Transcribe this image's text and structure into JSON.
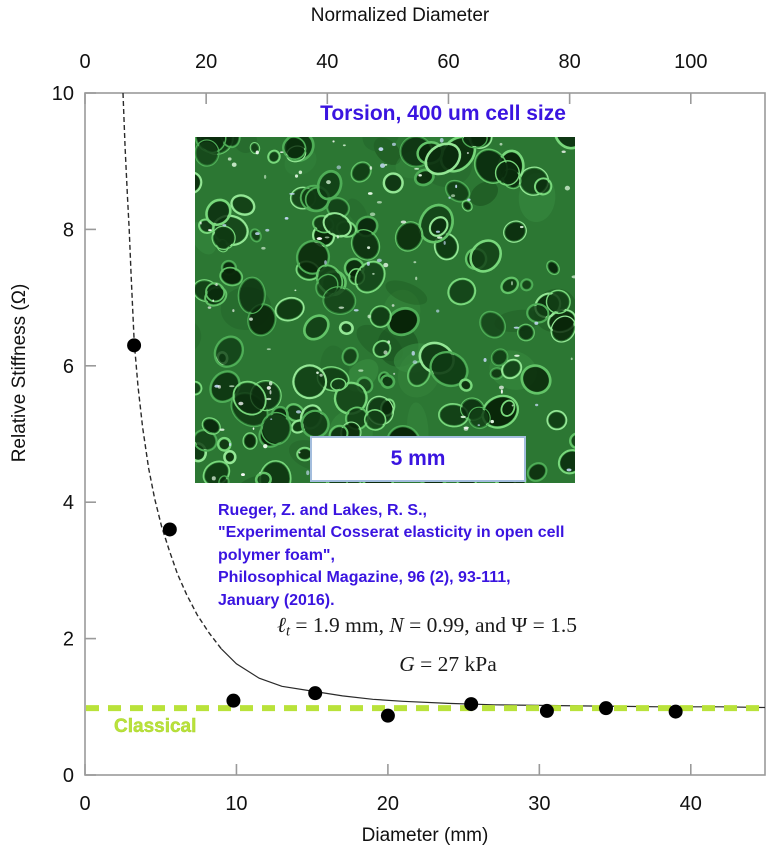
{
  "colors": {
    "accent_blue": "#3a14e0",
    "classical_green": "#b9e23a",
    "axis_gray": "#9a9a9a",
    "point_black": "#000000",
    "curve_dark": "#2a2a2a",
    "foam_green_base": "#2c7733"
  },
  "chart_data": {
    "type": "scatter",
    "title": "Torsion, 400 um cell size",
    "top_axis": {
      "label": "Normalized Diameter",
      "ticks": [
        0,
        20,
        40,
        60,
        80,
        100
      ],
      "range": [
        0,
        112.25
      ]
    },
    "bottom_axis": {
      "label": "Diameter (mm)",
      "ticks": [
        0,
        10,
        20,
        30,
        40
      ],
      "range": [
        0,
        44.9
      ]
    },
    "left_axis": {
      "label": "Relative Stiffness (Ω)",
      "ticks": [
        0,
        2,
        4,
        6,
        8,
        10
      ],
      "range": [
        0,
        10
      ]
    },
    "grid": false,
    "legend": "none",
    "points": [
      [
        3.24,
        6.3
      ],
      [
        5.6,
        3.6
      ],
      [
        9.8,
        1.09
      ],
      [
        15.2,
        1.2
      ],
      [
        20.0,
        0.87
      ],
      [
        25.5,
        1.04
      ],
      [
        30.5,
        0.94
      ],
      [
        34.4,
        0.98
      ],
      [
        39.0,
        0.93
      ]
    ],
    "fit_curve": [
      [
        2.51,
        10.0
      ],
      [
        2.65,
        9.2
      ],
      [
        2.8,
        8.5
      ],
      [
        2.92,
        8.0
      ],
      [
        3.05,
        7.3
      ],
      [
        3.25,
        6.35
      ],
      [
        3.5,
        5.7
      ],
      [
        3.8,
        5.1
      ],
      [
        4.2,
        4.5
      ],
      [
        4.6,
        4.05
      ],
      [
        5.05,
        3.65
      ],
      [
        5.55,
        3.3
      ],
      [
        6.1,
        2.95
      ],
      [
        6.7,
        2.65
      ],
      [
        7.4,
        2.35
      ],
      [
        8.2,
        2.08
      ],
      [
        9.0,
        1.85
      ],
      [
        10.0,
        1.63
      ],
      [
        11.5,
        1.42
      ],
      [
        13.0,
        1.3
      ],
      [
        15.0,
        1.23
      ],
      [
        17.0,
        1.16
      ],
      [
        19.0,
        1.11
      ],
      [
        21.0,
        1.08
      ],
      [
        24.0,
        1.05
      ],
      [
        27.0,
        1.03
      ],
      [
        30.0,
        1.02
      ],
      [
        34.0,
        1.01
      ],
      [
        38.0,
        1.0
      ],
      [
        42.0,
        1.0
      ],
      [
        44.9,
        0.99
      ]
    ],
    "classical_line": {
      "label": "Classical",
      "value": 0.98
    }
  },
  "annotations": {
    "citation_lines": [
      "Rueger, Z. and Lakes, R. S.,",
      "\"Experimental Cosserat elasticity in open cell",
      "polymer foam\",",
      "Philosophical Magazine, 96 (2), 93-111,",
      "January (2016)."
    ],
    "equation1_parts": [
      {
        "t": "ℓ",
        "style": "italic"
      },
      {
        "t": "t",
        "style": "sub"
      },
      {
        "t": " = 1.9 mm, ",
        "style": "normal"
      },
      {
        "t": "N",
        "style": "italic"
      },
      {
        "t": " = 0.99, and ",
        "style": "normal"
      },
      {
        "t": "Ψ",
        "style": "normal"
      },
      {
        "t": " = 1.5",
        "style": "normal"
      }
    ],
    "equation2_parts": [
      {
        "t": "G",
        "style": "italic"
      },
      {
        "t": " = 27 kPa",
        "style": "normal"
      }
    ]
  },
  "inset": {
    "description": "green open-cell polymer foam photograph",
    "scale_bar_label": "5 mm"
  }
}
